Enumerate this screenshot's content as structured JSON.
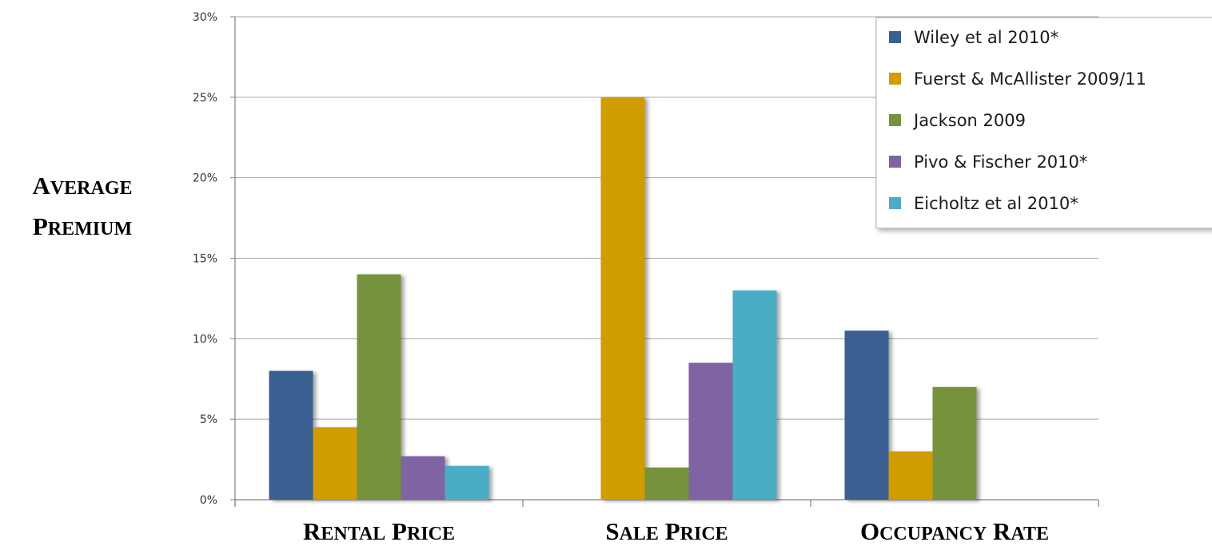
{
  "chart_data": {
    "type": "bar",
    "title": "",
    "ylabel": [
      "AVERAGE",
      "PREMIUM"
    ],
    "xlabel": "",
    "categories": [
      "RENTAL PRICE",
      "SALE PRICE",
      "OCCUPANCY RATE"
    ],
    "y_ticks": [
      "0%",
      "5%",
      "10%",
      "15%",
      "20%",
      "25%",
      "30%"
    ],
    "ylim": [
      0,
      30
    ],
    "y_unit": "%",
    "grid": true,
    "legend_position": "top-right",
    "series": [
      {
        "name": "Wiley et al 2010*",
        "color": "#3A5F91",
        "values": [
          8,
          null,
          10.5
        ]
      },
      {
        "name": "Fuerst & McAllister 2009/11",
        "color": "#D09C00",
        "values": [
          4.5,
          25,
          3
        ]
      },
      {
        "name": "Jackson 2009",
        "color": "#76923C",
        "values": [
          14,
          2,
          7
        ]
      },
      {
        "name": "Pivo & Fischer 2010*",
        "color": "#8064A2",
        "values": [
          2.7,
          8.5,
          null
        ]
      },
      {
        "name": "Eicholtz et al 2010*",
        "color": "#4BACC6",
        "values": [
          2.1,
          13,
          null
        ]
      }
    ]
  }
}
